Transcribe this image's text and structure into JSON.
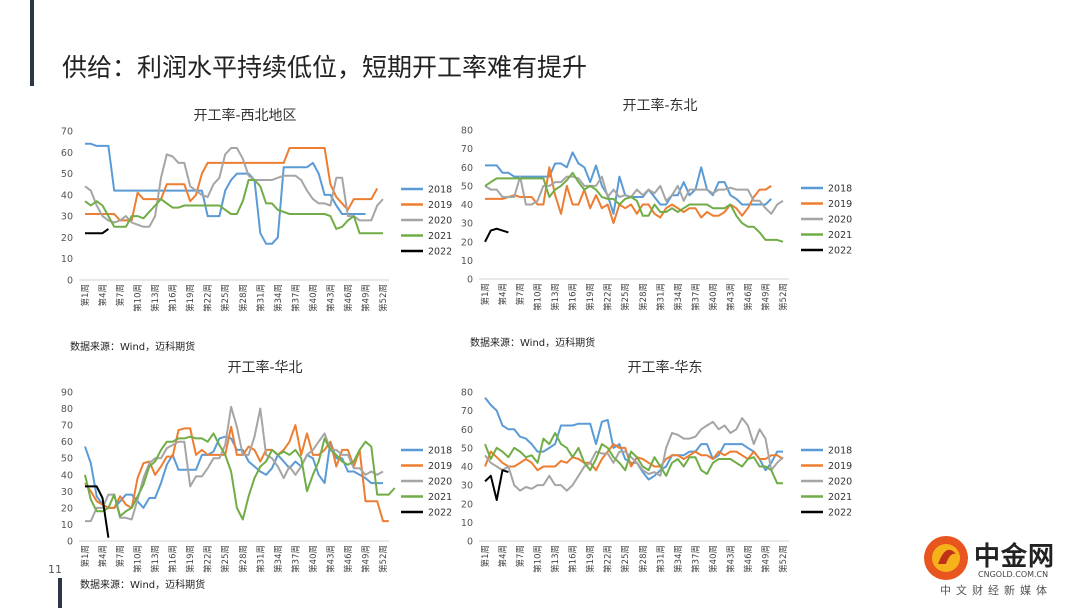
{
  "slide": {
    "title": "供给：利润水平持续低位，短期开工率难有提升",
    "page_number": "11"
  },
  "logo": {
    "name": "中金网",
    "url_text": "CNGOLD.COM.CN",
    "tagline": "中文财经新媒体"
  },
  "colors": {
    "2018": "#5b9bd5",
    "2019": "#ed7d31",
    "2020": "#a5a5a5",
    "2021": "#70ad47",
    "2022": "#000000"
  },
  "week_ticks": [
    "第1周",
    "第4周",
    "第7周",
    "第10周",
    "第13周",
    "第16周",
    "第19周",
    "第22周",
    "第25周",
    "第28周",
    "第31周",
    "第34周",
    "第37周",
    "第40周",
    "第43周",
    "第46周",
    "第49周",
    "第52周"
  ],
  "chart_data": [
    {
      "type": "line",
      "title": "开工率-西北地区",
      "source": "数据来源：Wind，迈科期货",
      "ylim": [
        0,
        70
      ],
      "yticks": [
        0,
        10,
        20,
        30,
        40,
        50,
        60,
        70
      ],
      "legend_position": "right",
      "series": [
        {
          "name": "2018",
          "values": [
            64,
            64,
            63,
            63,
            63,
            42,
            42,
            42,
            42,
            42,
            42,
            42,
            42,
            42,
            42,
            42,
            42,
            42,
            42,
            42,
            42,
            30,
            30,
            30,
            42,
            47,
            50,
            50,
            50,
            47,
            22,
            17,
            17,
            20,
            53,
            53,
            53,
            53,
            53,
            55,
            50,
            40,
            40,
            35,
            31,
            31,
            31,
            31,
            31
          ]
        },
        {
          "name": "2019",
          "values": [
            31,
            31,
            31,
            31,
            31,
            31,
            28,
            28,
            28,
            41,
            38,
            38,
            38,
            38,
            45,
            45,
            45,
            45,
            37,
            40,
            50,
            55,
            55,
            55,
            55,
            55,
            55,
            55,
            55,
            55,
            55,
            55,
            55,
            55,
            55,
            62,
            62,
            62,
            62,
            62,
            62,
            62,
            45,
            39,
            36,
            33,
            38,
            38,
            38,
            38,
            43
          ]
        },
        {
          "name": "2020",
          "values": [
            44,
            42,
            35,
            30,
            28,
            27,
            28,
            30,
            27,
            26,
            25,
            25,
            30,
            48,
            59,
            58,
            55,
            55,
            44,
            42,
            40,
            39,
            45,
            48,
            59,
            62,
            62,
            57,
            49,
            47,
            47,
            47,
            47,
            48,
            49,
            49,
            49,
            47,
            42,
            38,
            36,
            36,
            35,
            48,
            48,
            30,
            30,
            28,
            28,
            28,
            35,
            38
          ]
        },
        {
          "name": "2021",
          "values": [
            37,
            35,
            37,
            35,
            30,
            25,
            25,
            25,
            30,
            30,
            29,
            32,
            35,
            38,
            36,
            34,
            34,
            35,
            35,
            35,
            35,
            35,
            35,
            35,
            33,
            31,
            31,
            37,
            47,
            47,
            44,
            36,
            36,
            33,
            32,
            31,
            31,
            31,
            31,
            31,
            31,
            31,
            30,
            24,
            25,
            28,
            30,
            22,
            22,
            22,
            22,
            22
          ]
        },
        {
          "name": "2022",
          "values": [
            22,
            22,
            22,
            22,
            24
          ]
        }
      ]
    },
    {
      "type": "line",
      "title": "开工率-东北",
      "source": "数据来源：Wind，迈科期货",
      "ylim": [
        0,
        80
      ],
      "yticks": [
        0,
        10,
        20,
        30,
        40,
        50,
        60,
        70,
        80
      ],
      "legend_position": "right",
      "series": [
        {
          "name": "2018",
          "values": [
            61,
            61,
            61,
            57,
            57,
            55,
            55,
            55,
            55,
            55,
            55,
            55,
            62,
            62,
            60,
            68,
            62,
            60,
            52,
            61,
            50,
            45,
            35,
            55,
            45,
            44,
            44,
            44,
            48,
            44,
            40,
            40,
            45,
            45,
            52,
            45,
            48,
            60,
            48,
            45,
            52,
            52,
            45,
            43,
            40,
            40,
            40,
            40,
            40,
            43
          ]
        },
        {
          "name": "2019",
          "values": [
            43,
            43,
            43,
            43,
            44,
            45,
            44,
            44,
            44,
            40,
            40,
            60,
            45,
            35,
            50,
            40,
            40,
            48,
            38,
            45,
            38,
            40,
            30,
            40,
            38,
            40,
            35,
            40,
            40,
            35,
            33,
            38,
            40,
            38,
            36,
            38,
            38,
            33,
            36,
            34,
            34,
            36,
            40,
            38,
            34,
            38,
            44,
            48,
            48,
            50
          ]
        },
        {
          "name": "2020",
          "values": [
            50,
            48,
            48,
            44,
            44,
            44,
            55,
            40,
            40,
            42,
            50,
            50,
            52,
            52,
            55,
            55,
            54,
            50,
            50,
            50,
            55,
            44,
            48,
            44,
            45,
            44,
            48,
            45,
            48,
            46,
            50,
            42,
            45,
            50,
            42,
            48,
            48,
            48,
            48,
            46,
            48,
            48,
            49,
            48,
            48,
            48,
            42,
            42,
            38,
            35,
            40,
            42
          ]
        },
        {
          "name": "2021",
          "values": [
            50,
            52,
            54,
            54,
            54,
            54,
            54,
            54,
            54,
            54,
            54,
            44,
            48,
            50,
            53,
            57,
            52,
            48,
            50,
            48,
            44,
            43,
            43,
            40,
            43,
            44,
            42,
            34,
            34,
            40,
            36,
            36,
            38,
            36,
            38,
            40,
            40,
            40,
            40,
            38,
            38,
            38,
            40,
            34,
            30,
            28,
            28,
            25,
            21,
            21,
            21,
            20
          ]
        },
        {
          "name": "2022",
          "values": [
            20,
            26,
            27,
            26,
            25
          ]
        }
      ]
    },
    {
      "type": "line",
      "title": "开工率-华北",
      "source": "数据来源：Wind，迈科期货",
      "ylim": [
        0,
        90
      ],
      "yticks": [
        0,
        10,
        20,
        30,
        40,
        50,
        60,
        70,
        80,
        90
      ],
      "legend_position": "right",
      "series": [
        {
          "name": "2018",
          "values": [
            57,
            47,
            27,
            22,
            20,
            20,
            24,
            28,
            28,
            24,
            20,
            26,
            26,
            35,
            46,
            52,
            43,
            43,
            43,
            43,
            52,
            52,
            54,
            62,
            63,
            62,
            55,
            55,
            48,
            45,
            42,
            40,
            44,
            52,
            48,
            44,
            48,
            45,
            52,
            50,
            40,
            35,
            60,
            50,
            50,
            42,
            42,
            40,
            38,
            35,
            35,
            35
          ]
        },
        {
          "name": "2019",
          "values": [
            35,
            30,
            24,
            22,
            20,
            20,
            27,
            22,
            20,
            38,
            47,
            48,
            40,
            45,
            51,
            51,
            67,
            68,
            68,
            52,
            55,
            52,
            52,
            52,
            52,
            69,
            52,
            52,
            57,
            55,
            48,
            55,
            55,
            52,
            55,
            60,
            70,
            52,
            65,
            52,
            52,
            55,
            60,
            45,
            55,
            55,
            45,
            55,
            24,
            24,
            24,
            12,
            12
          ]
        },
        {
          "name": "2020",
          "values": [
            12,
            12,
            20,
            20,
            28,
            28,
            14,
            14,
            13,
            25,
            38,
            47,
            50,
            50,
            56,
            58,
            60,
            60,
            33,
            39,
            39,
            44,
            50,
            50,
            58,
            81,
            69,
            52,
            52,
            63,
            80,
            52,
            50,
            45,
            38,
            45,
            40,
            45,
            52,
            55,
            60,
            65,
            55,
            55,
            52,
            52,
            44,
            44,
            40,
            42,
            40,
            42
          ]
        },
        {
          "name": "2021",
          "values": [
            40,
            25,
            18,
            18,
            20,
            28,
            15,
            18,
            20,
            27,
            34,
            45,
            48,
            55,
            60,
            60,
            62,
            62,
            63,
            62,
            62,
            60,
            65,
            58,
            52,
            42,
            20,
            13,
            27,
            38,
            45,
            48,
            55,
            52,
            54,
            52,
            55,
            50,
            30,
            40,
            48,
            62,
            55,
            52,
            48,
            46,
            48,
            55,
            60,
            57,
            28,
            28,
            28,
            32
          ]
        },
        {
          "name": "2022",
          "values": [
            33,
            33,
            33,
            26,
            2
          ]
        }
      ]
    },
    {
      "type": "line",
      "title": "开工率-华东",
      "source": "数据来源：Wind，迈科期货",
      "ylim": [
        0,
        80
      ],
      "yticks": [
        0,
        10,
        20,
        30,
        40,
        50,
        60,
        70,
        80
      ],
      "legend_position": "right",
      "series": [
        {
          "name": "2018",
          "values": [
            77,
            73,
            70,
            62,
            60,
            60,
            56,
            55,
            52,
            48,
            48,
            50,
            52,
            62,
            62,
            62,
            63,
            63,
            63,
            52,
            64,
            65,
            50,
            52,
            44,
            42,
            42,
            37,
            33,
            35,
            38,
            40,
            46,
            46,
            46,
            48,
            48,
            52,
            52,
            44,
            46,
            52,
            52,
            52,
            52,
            50,
            48,
            44,
            38,
            42,
            48,
            48
          ]
        },
        {
          "name": "2019",
          "values": [
            40,
            48,
            45,
            42,
            40,
            40,
            42,
            44,
            42,
            38,
            40,
            40,
            40,
            43,
            42,
            45,
            44,
            42,
            42,
            38,
            44,
            48,
            52,
            50,
            50,
            40,
            45,
            44,
            42,
            40,
            40,
            44,
            46,
            46,
            44,
            46,
            48,
            46,
            46,
            44,
            48,
            46,
            48,
            48,
            46,
            44,
            48,
            44,
            44,
            46,
            46,
            44
          ]
        },
        {
          "name": "2020",
          "values": [
            46,
            42,
            40,
            38,
            40,
            30,
            27,
            29,
            28,
            30,
            30,
            35,
            30,
            30,
            27,
            30,
            35,
            40,
            42,
            48,
            47,
            47,
            42,
            48,
            48,
            45,
            42,
            38,
            36,
            37,
            35,
            50,
            58,
            57,
            55,
            55,
            56,
            60,
            62,
            64,
            60,
            62,
            58,
            60,
            66,
            62,
            52,
            60,
            55,
            38,
            42,
            45
          ]
        },
        {
          "name": "2021",
          "values": [
            52,
            44,
            50,
            48,
            45,
            50,
            48,
            45,
            46,
            42,
            55,
            52,
            58,
            52,
            50,
            45,
            50,
            42,
            38,
            44,
            52,
            50,
            45,
            42,
            38,
            48,
            45,
            40,
            38,
            45,
            40,
            35,
            42,
            44,
            40,
            45,
            45,
            38,
            36,
            42,
            44,
            44,
            44,
            42,
            40,
            44,
            45,
            40,
            40,
            38,
            31,
            31
          ]
        },
        {
          "name": "2022",
          "values": [
            32,
            35,
            22,
            38,
            37
          ]
        }
      ]
    }
  ]
}
